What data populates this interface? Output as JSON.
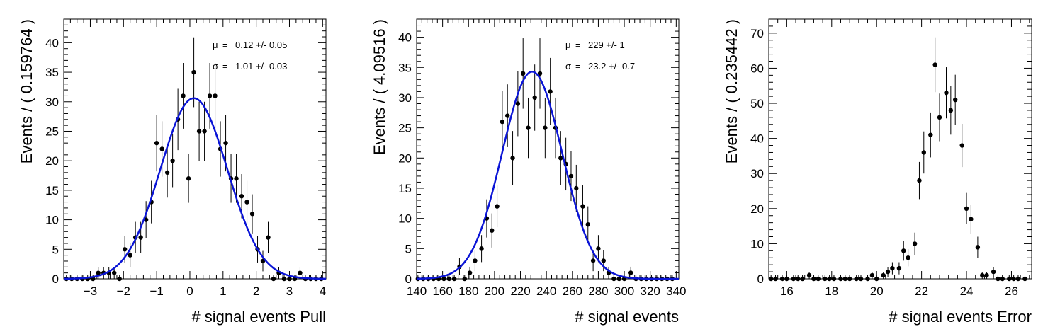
{
  "chart_data": [
    {
      "type": "scatter",
      "xlabel": "# signal events Pull",
      "ylabel": "Events / ( 0.159764 )",
      "xlim": [
        -3.8,
        4.1
      ],
      "ylim": [
        0,
        44
      ],
      "xticks": [
        -3,
        -2,
        -1,
        0,
        1,
        2,
        3,
        4
      ],
      "yticks": [
        0,
        5,
        10,
        15,
        20,
        25,
        30,
        35,
        40
      ],
      "fit": {
        "type": "gaussian",
        "mean": 0.12,
        "sigma": 1.01,
        "amplitude": 30.6,
        "color": "#0a14d6"
      },
      "annotations": [
        {
          "symbol": "μ",
          "text": "0.12 +/- 0.05"
        },
        {
          "symbol": "σ",
          "text": "1.01 +/- 0.03"
        }
      ],
      "points": [
        [
          -3.72,
          0
        ],
        [
          -3.56,
          0
        ],
        [
          -3.4,
          0
        ],
        [
          -3.24,
          0
        ],
        [
          -3.08,
          0
        ],
        [
          -2.92,
          0
        ],
        [
          -2.76,
          1
        ],
        [
          -2.6,
          1
        ],
        [
          -2.44,
          1
        ],
        [
          -2.28,
          1
        ],
        [
          -2.12,
          0
        ],
        [
          -1.96,
          5
        ],
        [
          -1.8,
          4
        ],
        [
          -1.64,
          7
        ],
        [
          -1.48,
          7
        ],
        [
          -1.32,
          10
        ],
        [
          -1.16,
          13
        ],
        [
          -1.0,
          23
        ],
        [
          -0.84,
          22
        ],
        [
          -0.68,
          18
        ],
        [
          -0.52,
          20
        ],
        [
          -0.36,
          27
        ],
        [
          -0.2,
          31
        ],
        [
          -0.04,
          17
        ],
        [
          0.12,
          35
        ],
        [
          0.28,
          25
        ],
        [
          0.44,
          25
        ],
        [
          0.6,
          31
        ],
        [
          0.76,
          31
        ],
        [
          0.92,
          22
        ],
        [
          1.08,
          23
        ],
        [
          1.24,
          17
        ],
        [
          1.4,
          17
        ],
        [
          1.56,
          14
        ],
        [
          1.72,
          13
        ],
        [
          1.88,
          11
        ],
        [
          2.04,
          5
        ],
        [
          2.2,
          3
        ],
        [
          2.36,
          7
        ],
        [
          2.52,
          0
        ],
        [
          2.68,
          1
        ],
        [
          2.84,
          0
        ],
        [
          3.0,
          0
        ],
        [
          3.16,
          0
        ],
        [
          3.32,
          1
        ],
        [
          3.48,
          0
        ],
        [
          3.64,
          0
        ],
        [
          3.8,
          0
        ],
        [
          3.96,
          0
        ]
      ]
    },
    {
      "type": "scatter",
      "xlabel": "# signal events",
      "ylabel": "Events / ( 4.09516 )",
      "xlim": [
        140,
        342
      ],
      "ylim": [
        0,
        43
      ],
      "xticks": [
        140,
        160,
        180,
        200,
        220,
        240,
        260,
        280,
        300,
        320,
        340
      ],
      "yticks": [
        0,
        5,
        10,
        15,
        20,
        25,
        30,
        35,
        40
      ],
      "fit": {
        "type": "gaussian",
        "mean": 229,
        "sigma": 23.2,
        "amplitude": 34.3,
        "color": "#0a14d6"
      },
      "annotations": [
        {
          "symbol": "μ",
          "text": "229 +/- 1"
        },
        {
          "symbol": "σ",
          "text": "23.2 +/- 0.7"
        }
      ],
      "points": [
        [
          141,
          0
        ],
        [
          145,
          0
        ],
        [
          149,
          0
        ],
        [
          153,
          0
        ],
        [
          157,
          0
        ],
        [
          161,
          0
        ],
        [
          165,
          0
        ],
        [
          169,
          0
        ],
        [
          173,
          2
        ],
        [
          177,
          0
        ],
        [
          181,
          1
        ],
        [
          185,
          3
        ],
        [
          190,
          5
        ],
        [
          194,
          10
        ],
        [
          198,
          8
        ],
        [
          202,
          12
        ],
        [
          206,
          26
        ],
        [
          210,
          27
        ],
        [
          214,
          20
        ],
        [
          218,
          29
        ],
        [
          222,
          34
        ],
        [
          226,
          25
        ],
        [
          231,
          30
        ],
        [
          235,
          34
        ],
        [
          239,
          25
        ],
        [
          243,
          31
        ],
        [
          247,
          25
        ],
        [
          251,
          20
        ],
        [
          255,
          19
        ],
        [
          259,
          17
        ],
        [
          263,
          15
        ],
        [
          268,
          12
        ],
        [
          272,
          9
        ],
        [
          276,
          3
        ],
        [
          280,
          5
        ],
        [
          284,
          3
        ],
        [
          288,
          1
        ],
        [
          292,
          0
        ],
        [
          296,
          0
        ],
        [
          300,
          0
        ],
        [
          305,
          1
        ],
        [
          309,
          0
        ],
        [
          313,
          0
        ],
        [
          317,
          0
        ],
        [
          321,
          0
        ],
        [
          325,
          0
        ],
        [
          329,
          0
        ],
        [
          333,
          0
        ],
        [
          337,
          0
        ]
      ]
    },
    {
      "type": "scatter",
      "xlabel": "# signal events Error",
      "ylabel": "Events / ( 0.235442 )",
      "xlim": [
        15.2,
        26.9
      ],
      "ylim": [
        0,
        74
      ],
      "xticks": [
        16,
        18,
        20,
        22,
        24,
        26
      ],
      "yticks": [
        0,
        10,
        20,
        30,
        40,
        50,
        60,
        70
      ],
      "points": [
        [
          15.3,
          0
        ],
        [
          15.5,
          0
        ],
        [
          15.8,
          0
        ],
        [
          16.0,
          0
        ],
        [
          16.3,
          0
        ],
        [
          16.5,
          0
        ],
        [
          16.7,
          0
        ],
        [
          17.0,
          1
        ],
        [
          17.2,
          0
        ],
        [
          17.4,
          0
        ],
        [
          17.7,
          0
        ],
        [
          17.9,
          0
        ],
        [
          18.1,
          0
        ],
        [
          18.4,
          0
        ],
        [
          18.6,
          0
        ],
        [
          18.8,
          0
        ],
        [
          19.1,
          0
        ],
        [
          19.3,
          0
        ],
        [
          19.6,
          0
        ],
        [
          19.8,
          1
        ],
        [
          20.0,
          0
        ],
        [
          20.3,
          1
        ],
        [
          20.5,
          2
        ],
        [
          20.7,
          3
        ],
        [
          21.0,
          3
        ],
        [
          21.2,
          8
        ],
        [
          21.4,
          6
        ],
        [
          21.7,
          10
        ],
        [
          21.9,
          28
        ],
        [
          22.1,
          36
        ],
        [
          22.4,
          41
        ],
        [
          22.6,
          61
        ],
        [
          22.8,
          46
        ],
        [
          23.1,
          53
        ],
        [
          23.3,
          48
        ],
        [
          23.5,
          51
        ],
        [
          23.8,
          38
        ],
        [
          24.0,
          20
        ],
        [
          24.2,
          17
        ],
        [
          24.5,
          9
        ],
        [
          24.7,
          1
        ],
        [
          24.9,
          1
        ],
        [
          25.2,
          2
        ],
        [
          25.4,
          0
        ],
        [
          25.6,
          0
        ],
        [
          25.9,
          0
        ],
        [
          26.1,
          0
        ],
        [
          26.3,
          0
        ],
        [
          26.6,
          0
        ]
      ]
    }
  ]
}
